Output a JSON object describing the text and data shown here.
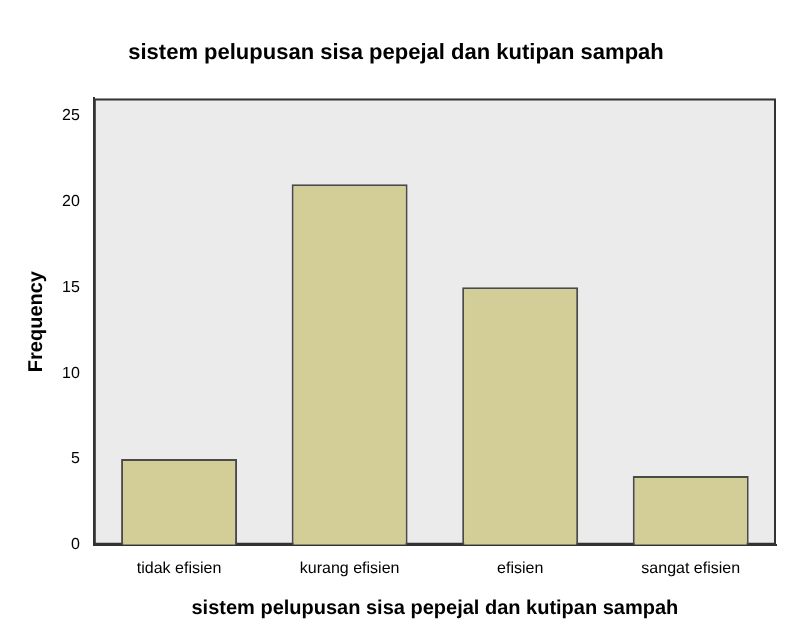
{
  "chart_data": {
    "type": "bar",
    "title": "sistem pelupusan sisa pepejal dan kutipan sampah",
    "xlabel": "sistem pelupusan sisa pepejal dan kutipan sampah",
    "ylabel": "Frequency",
    "categories": [
      "tidak efisien",
      "kurang efisien",
      "efisien",
      "sangat efisien"
    ],
    "values": [
      5,
      21,
      15,
      4
    ],
    "color": "#d3ce97",
    "ylim": [
      0,
      26
    ],
    "yticks": [
      0,
      5,
      10,
      15,
      20,
      25
    ],
    "grid": false,
    "legend": false
  }
}
